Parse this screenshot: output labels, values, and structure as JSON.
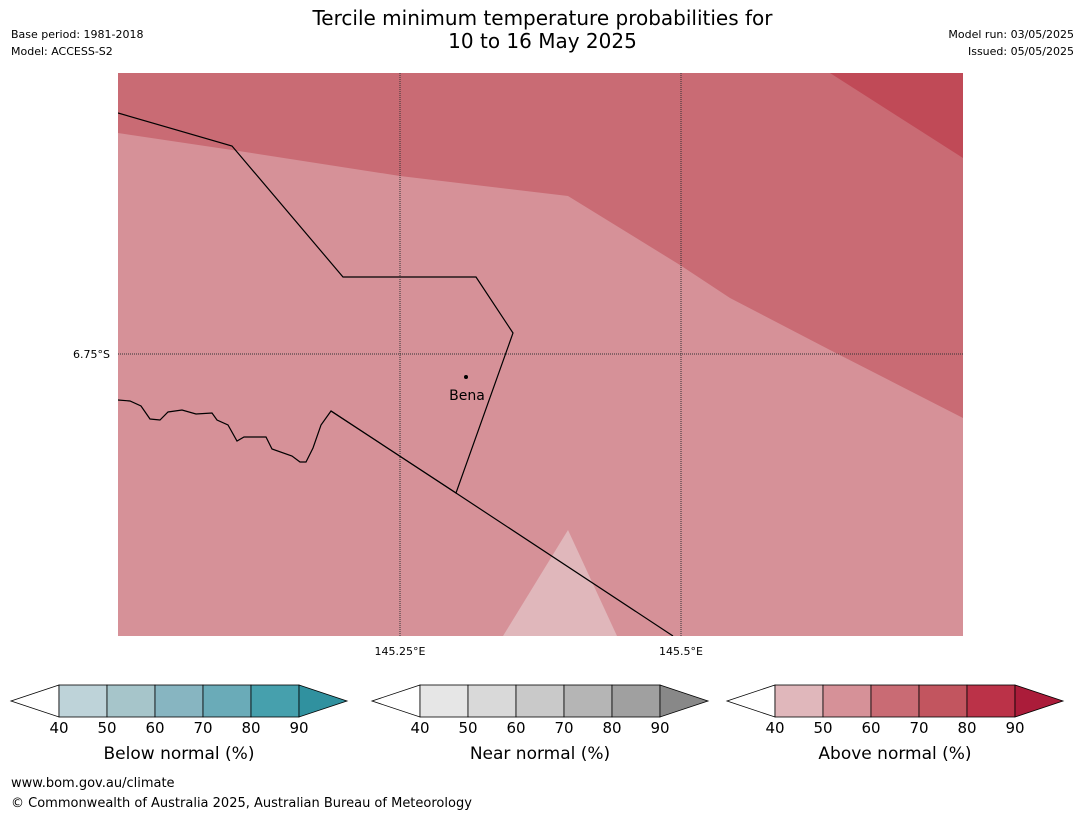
{
  "title": {
    "line1": "Tercile minimum temperature probabilities for",
    "line2": "10 to 16 May 2025"
  },
  "meta_left": {
    "base_period": "Base period: 1981-2018",
    "model": "Model: ACCESS-S2"
  },
  "meta_right": {
    "model_run": "Model run: 03/05/2025",
    "issued": "Issued: 05/05/2025"
  },
  "map": {
    "lat_label": "6.75°S",
    "lon_labels": [
      "145.25°E",
      "145.5°E"
    ],
    "place_label": "Bena",
    "colors": {
      "above_50_60": "#d69198",
      "above_60_70": "#c96b74",
      "above_70_80": "#c04a57",
      "above_40_50": "#e0b7bb"
    }
  },
  "colorbars": [
    {
      "label": "Below normal (%)",
      "ticks": [
        "40",
        "50",
        "60",
        "70",
        "80",
        "90"
      ],
      "colors": [
        "#bed3d9",
        "#a6c5ca",
        "#87b5c1",
        "#6aabb8",
        "#46a0ad",
        "#30919f"
      ]
    },
    {
      "label": "Near normal (%)",
      "ticks": [
        "40",
        "50",
        "60",
        "70",
        "80",
        "90"
      ],
      "colors": [
        "#e6e6e6",
        "#d9d9d9",
        "#c9c9c9",
        "#b5b5b5",
        "#a0a0a0",
        "#888888"
      ]
    },
    {
      "label": "Above normal (%)",
      "ticks": [
        "40",
        "50",
        "60",
        "70",
        "80",
        "90"
      ],
      "colors": [
        "#e0b7bb",
        "#d69198",
        "#c96b74",
        "#c2555f",
        "#bb3248",
        "#ab1c3a"
      ]
    }
  ],
  "footer": {
    "url": "www.bom.gov.au/climate",
    "copyright": "© Commonwealth of Australia 2025, Australian Bureau of Meteorology"
  }
}
